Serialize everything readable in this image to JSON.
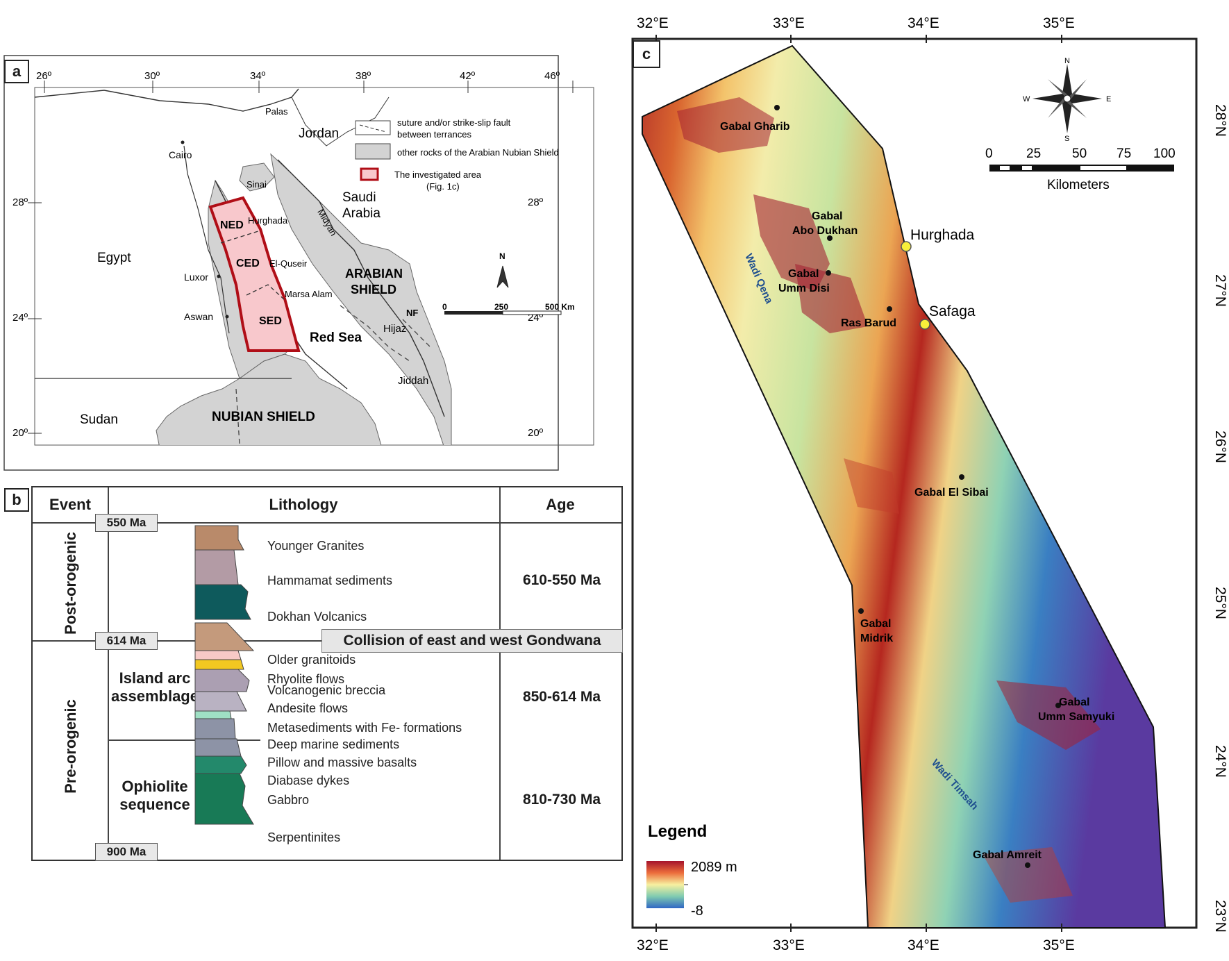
{
  "panel_a": {
    "label": "a",
    "top_lon_ticks": [
      "26º",
      "30º",
      "34º",
      "38º",
      "42º",
      "46º"
    ],
    "left_lat_ticks": [
      "28º",
      "24º",
      "20º"
    ],
    "right_lat_ticks": [
      "28º",
      "24º",
      "20º"
    ],
    "places": {
      "palas": "Palas",
      "jordan": "Jordan",
      "cairo": "Cairo",
      "sinai": "Sinai",
      "saudi_1": "Saudi",
      "saudi_2": "Arabia",
      "egypt": "Egypt",
      "hurghada": "Hurghada",
      "midyan": "Midyan",
      "ned": "NED",
      "ced": "CED",
      "el_quseir": "El-Quseir",
      "luxor": "Luxor",
      "arabian_1": "ARABIAN",
      "arabian_2": "SHIELD",
      "marsa_alam": "Marsa Alam",
      "aswan": "Aswan",
      "sed": "SED",
      "nf": "NF",
      "red_sea": "Red Sea",
      "hijaz": "Hijaz",
      "jiddah": "Jiddah",
      "sudan": "Sudan",
      "nubian": "NUBIAN SHIELD",
      "north": "N"
    },
    "legend": {
      "fault_1": "suture and/or strike-slip fault",
      "fault_2": "between terrances",
      "other_rocks": "other rocks of the Arabian Nubian Shield",
      "investigated_1": "The investigated area",
      "investigated_2": "(Fig. 1c)"
    },
    "scale": {
      "zero": "0",
      "mid": "250",
      "end": "500 Km"
    },
    "colors": {
      "shield": "#d3d3d3",
      "study_fill": "#f8c8cc",
      "study_border": "#b00e17"
    }
  },
  "panel_b": {
    "label": "b",
    "headers": {
      "event": "Event",
      "lithology": "Lithology",
      "age": "Age"
    },
    "ma_markers": [
      "550 Ma",
      "614 Ma",
      "900 Ma"
    ],
    "events": {
      "post": "Post-orogenic",
      "pre": "Pre-orogenic"
    },
    "groups": {
      "island_1": "Island arc",
      "island_2": "assemblage",
      "ophiolite_1": "Ophiolite",
      "ophiolite_2": "sequence"
    },
    "collision": "Collision of east and west Gondwana",
    "lithologies": [
      "Younger Granites",
      "Hammamat sediments",
      "Dokhan Volcanics",
      "Older granitoids",
      "Rhyolite flows",
      "Volcanogenic breccia",
      "Andesite flows",
      "Metasediments with Fe- formations",
      "Deep marine sediments",
      "Pillow and massive basalts",
      "Diabase dykes",
      "Gabbro",
      "Serpentinites"
    ],
    "ages": [
      "610-550 Ma",
      "850-614 Ma",
      "810-730 Ma"
    ],
    "unit_colors": [
      "#b98a6a",
      "#b39ba5",
      "#0e5a5c",
      "#c49a7c",
      "#f7c9c6",
      "#f2c821",
      "#ab9fb2",
      "#b9b2c2",
      "#9fe0c4",
      "#8d93a6",
      "#8d93a6",
      "#23896b",
      "#187a56"
    ]
  },
  "panel_c": {
    "label": "c",
    "lon_ticks": [
      "32°E",
      "33°E",
      "34°E",
      "35°E"
    ],
    "lat_ticks": [
      "28°N",
      "27°N",
      "26°N",
      "25°N",
      "24°N",
      "23°N"
    ],
    "sites": [
      "Gabal Gharib",
      "Gabal",
      "Abo Dukhan",
      "Gabal",
      "Umm Disi",
      "Ras Barud",
      "Gabal El Sibai",
      "Gabal",
      "Midrik",
      "Gabal",
      "Umm Samyuki",
      "Gabal Amreit"
    ],
    "towns": [
      "Hurghada",
      "Safaga"
    ],
    "wadis": [
      "Wadi Qena",
      "Wadi Timsah"
    ],
    "compass": {
      "n": "N",
      "s": "S",
      "e": "E",
      "w": "W"
    },
    "scale": {
      "ticks": [
        "0",
        "25",
        "50",
        "75",
        "100"
      ],
      "unit": "Kilometers"
    },
    "legend": {
      "title": "Legend",
      "max": "2089 m",
      "min": "-8"
    },
    "colors": {
      "town_marker": "#f8ef3a",
      "wadi_text": "#1f4f8f"
    }
  }
}
